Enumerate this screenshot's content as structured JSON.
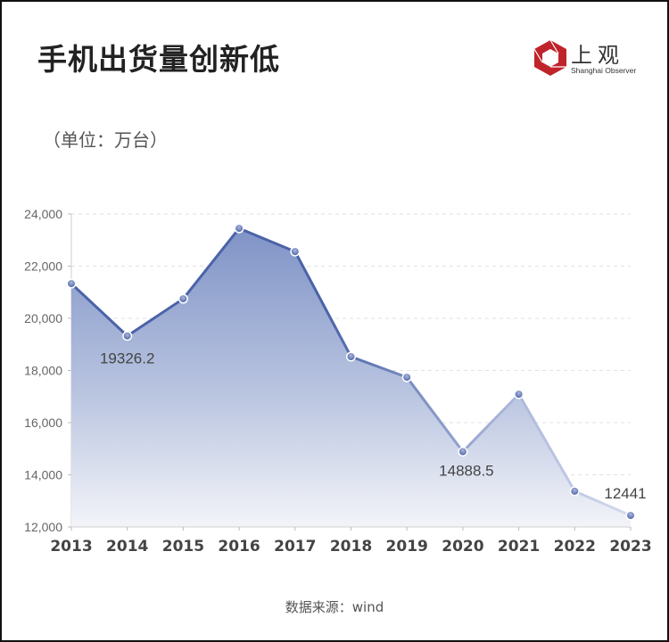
{
  "header": {
    "title": "手机出货量创新低",
    "unit": "（单位：万台）"
  },
  "logo": {
    "name_cn": "上观",
    "name_en": "Shanghai Observer",
    "color": "#c0242b"
  },
  "footer": {
    "source": "数据来源：wind"
  },
  "chart_data": {
    "type": "area",
    "title": "手机出货量创新低",
    "subtitle": "（单位：万台）",
    "xlabel": "",
    "ylabel": "万台",
    "categories": [
      "2013",
      "2014",
      "2015",
      "2016",
      "2017",
      "2018",
      "2019",
      "2020",
      "2021",
      "2022",
      "2023"
    ],
    "series": [
      {
        "name": "手机出货量",
        "values": [
          21330,
          19326.2,
          20750,
          23450,
          22560,
          18530,
          17740,
          14888.5,
          17090,
          13370,
          12441
        ],
        "color": "#4a63a8"
      }
    ],
    "annotations": [
      {
        "x": "2014",
        "label": "19326.2"
      },
      {
        "x": "2020",
        "label": "14888.5"
      },
      {
        "x": "2023",
        "label": "12441"
      }
    ],
    "yticks": [
      "12,000",
      "14,000",
      "16,000",
      "18,000",
      "20,000",
      "22,000",
      "24,000"
    ],
    "ylim": [
      12000,
      24000
    ],
    "grid": true,
    "legend": "none",
    "source": "数据来源：wind"
  }
}
